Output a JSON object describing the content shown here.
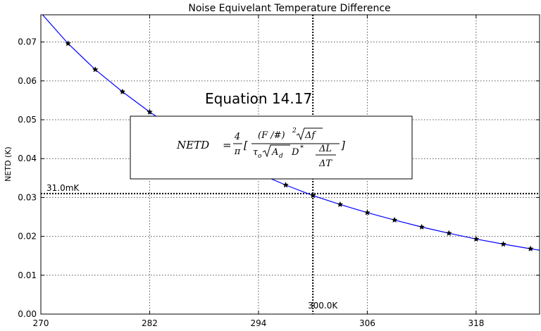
{
  "chart_data": {
    "type": "line",
    "title": "Noise Equivelant Temperature Difference",
    "xlabel": "",
    "ylabel": "NETD (K)",
    "xlim": [
      270,
      325
    ],
    "ylim": [
      0.0,
      0.077
    ],
    "xticks": [
      270,
      282,
      294,
      306,
      318
    ],
    "xtick_labels": [
      "270",
      "282",
      "294",
      "306",
      "318"
    ],
    "yticks": [
      0.0,
      0.01,
      0.02,
      0.03,
      0.04,
      0.05,
      0.06,
      0.07
    ],
    "ytick_labels": [
      "0.00",
      "0.01",
      "0.02",
      "0.03",
      "0.04",
      "0.05",
      "0.06",
      "0.07"
    ],
    "grid": true,
    "series": [
      {
        "color": "#0000ff",
        "marker": "star",
        "x": [
          270,
          273,
          276,
          279,
          282,
          285,
          288,
          291,
          294,
          297,
          300,
          303,
          306,
          309,
          312,
          315,
          318,
          321,
          324,
          327
        ],
        "y": [
          0.0775,
          0.0696,
          0.0629,
          0.0572,
          0.052,
          0.0474,
          0.0432,
          0.0395,
          0.0362,
          0.0332,
          0.0305,
          0.0282,
          0.0261,
          0.0242,
          0.0224,
          0.0208,
          0.0193,
          0.018,
          0.0168,
          0.0157
        ],
        "marker_x": [
          273,
          276,
          279,
          282,
          285,
          288,
          291,
          294,
          297,
          300,
          303,
          306,
          309,
          312,
          315,
          318,
          321,
          324
        ],
        "marker_y": [
          0.0696,
          0.0629,
          0.0572,
          0.052,
          0.0474,
          0.0432,
          0.0395,
          0.0362,
          0.0332,
          0.0305,
          0.0282,
          0.0261,
          0.0242,
          0.0224,
          0.0208,
          0.0193,
          0.018,
          0.0168
        ]
      }
    ],
    "reference_lines": {
      "vertical_x": 300,
      "horizontal_y": 0.031
    },
    "annotations": {
      "horizontal_label": "31.0mK",
      "vertical_label": "300.0K",
      "equation_title": "Equation 14.17"
    },
    "equation": {
      "lhs": "NETD",
      "equals": "=",
      "frac_num": "4",
      "frac_den": "π",
      "open_bracket": "[",
      "close_bracket": "]",
      "num_main": "(F /#)",
      "num_exp": "2",
      "num_root": "Δf",
      "den_tau": "τ",
      "den_tau_sub": "o",
      "den_root": "A",
      "den_root_sub": "d",
      "den_D": "D",
      "den_D_sup": "*",
      "ratio_num": "ΔL",
      "ratio_den": "ΔT"
    }
  }
}
